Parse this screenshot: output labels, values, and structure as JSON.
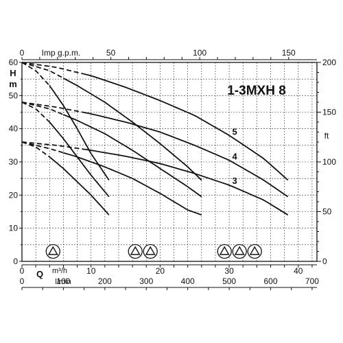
{
  "chart_data": {
    "type": "line",
    "title": "1-3MXH 8",
    "grid": true,
    "axes": {
      "left": {
        "label": "H\nm",
        "label_lines": [
          "H",
          "m"
        ],
        "range": [
          0,
          60
        ],
        "ticks": [
          0,
          10,
          20,
          30,
          40,
          50,
          60
        ]
      },
      "right": {
        "label": "ft",
        "range": [
          0,
          200
        ],
        "ticks": [
          0,
          50,
          100,
          150,
          200
        ]
      },
      "top": {
        "label": "Imp g.p.m.",
        "range": [
          0,
          150
        ],
        "ticks": [
          0,
          50,
          100,
          150
        ]
      },
      "bottom_m3h": {
        "label": "Q   m³/h",
        "label_q": "Q",
        "label_unit": "m³/h",
        "range": [
          0,
          40
        ],
        "ticks": [
          0,
          10,
          20,
          30,
          40
        ]
      },
      "bottom_lmin": {
        "label": "l/min",
        "range": [
          0,
          700
        ],
        "ticks": [
          0,
          100,
          200,
          300,
          400,
          500,
          600,
          700
        ]
      }
    },
    "x_unit": "m³/h",
    "y_unit": "m",
    "series": [
      {
        "name": "3",
        "stages": 1,
        "curves": [
          {
            "impeller": 1,
            "x": [
              0,
              2,
              4,
              6,
              8,
              10,
              12.6
            ],
            "y": [
              36,
              34.5,
              31.5,
              28,
              24,
              20,
              14
            ]
          },
          {
            "impeller": 2,
            "x": [
              0,
              4,
              8,
              12,
              16,
              20,
              24,
              26
            ],
            "y": [
              36,
              34,
              31.5,
              28.5,
              25,
              20.5,
              15.5,
              14
            ]
          },
          {
            "impeller": 3,
            "x": [
              0,
              5,
              10,
              15,
              20,
              25,
              30,
              35,
              38.5
            ],
            "y": [
              36,
              35,
              33.5,
              31.7,
              29.5,
              26.5,
              23,
              18.5,
              14
            ]
          }
        ]
      },
      {
        "name": "4",
        "stages": 1,
        "curves": [
          {
            "impeller": 1,
            "x": [
              0,
              2,
              4,
              6,
              8,
              10,
              12.6
            ],
            "y": [
              48,
              46,
              42,
              37,
              31.5,
              26,
              19.5
            ]
          },
          {
            "impeller": 2,
            "x": [
              0,
              4,
              8,
              12,
              16,
              20,
              24,
              26
            ],
            "y": [
              48,
              46,
              42.5,
              38.5,
              33.5,
              28,
              22.5,
              19.5
            ]
          },
          {
            "impeller": 3,
            "x": [
              0,
              5,
              10,
              15,
              20,
              25,
              30,
              35,
              38.5
            ],
            "y": [
              48,
              46.5,
              44.5,
              42,
              39,
              35,
              30.5,
              24.5,
              19.5
            ]
          }
        ]
      },
      {
        "name": "5",
        "stages": 1,
        "curves": [
          {
            "impeller": 1,
            "x": [
              0,
              2,
              4,
              6,
              8,
              10,
              12.6
            ],
            "y": [
              60,
              57.5,
              53,
              47,
              40,
              32.5,
              24.5
            ]
          },
          {
            "impeller": 2,
            "x": [
              0,
              4,
              8,
              12,
              16,
              20,
              24,
              26
            ],
            "y": [
              60,
              57.5,
              53,
              48,
              42,
              35.5,
              28.5,
              24.5
            ]
          },
          {
            "impeller": 3,
            "x": [
              0,
              5,
              10,
              15,
              20,
              25,
              30,
              35,
              38.5
            ],
            "y": [
              60,
              58.5,
              56,
              52.5,
              48.5,
              44,
              38,
              31,
              24.5
            ]
          }
        ]
      }
    ],
    "dashed_segment_end_x": [
      4,
      6,
      9
    ],
    "impeller_symbols": [
      {
        "count": 1,
        "x_center": 4.5
      },
      {
        "count": 2,
        "x_center": 17.5
      },
      {
        "count": 3,
        "x_center": 31.5
      }
    ]
  }
}
